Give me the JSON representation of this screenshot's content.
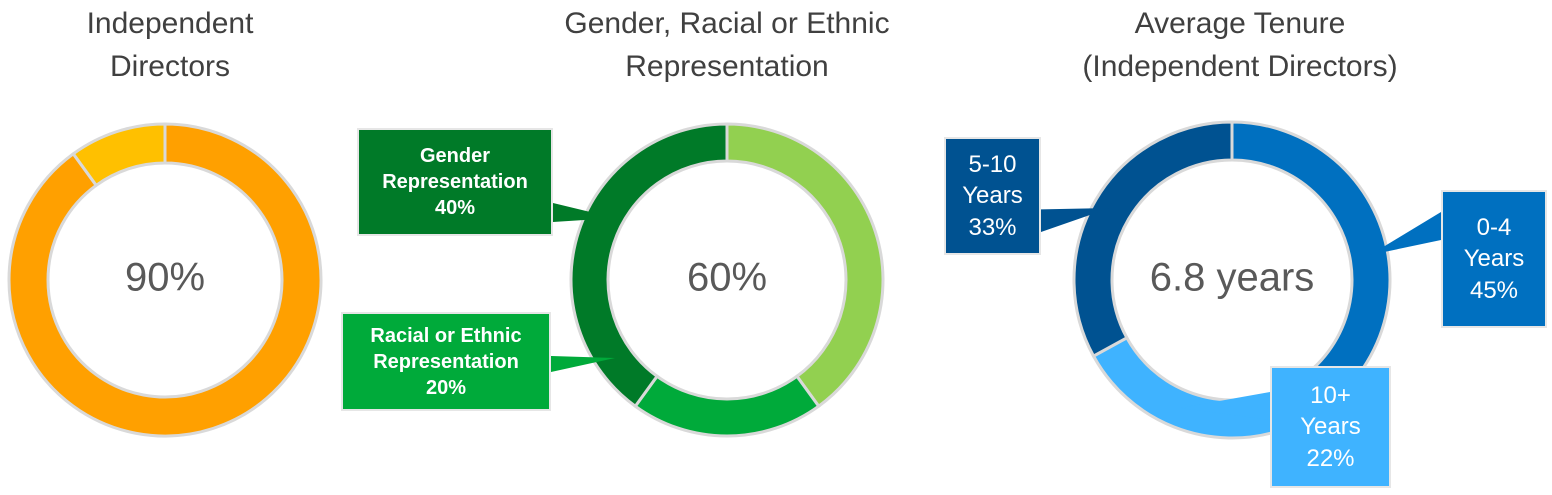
{
  "chart_data": [
    {
      "type": "donut",
      "title": "Independent Directors",
      "center_label": "90%",
      "values": [
        90,
        10
      ],
      "colors": [
        "#FFA000",
        "#FFC000"
      ]
    },
    {
      "type": "donut",
      "title": "Gender, Racial or Ethnic Representation",
      "center_label": "60%",
      "categories": [
        null,
        "Racial or Ethnic Representation",
        "Gender Representation"
      ],
      "values": [
        40,
        20,
        40
      ],
      "value_labels": [
        null,
        "20%",
        "40%"
      ],
      "colors": [
        "#92D050",
        "#00AA3A",
        "#007A28"
      ]
    },
    {
      "type": "donut",
      "title": "Average Tenure (Independent Directors)",
      "center_label": "6.8 years",
      "categories": [
        "0-4 Years",
        "10+ Years",
        "5-10 Years"
      ],
      "values": [
        45,
        22,
        33
      ],
      "value_labels": [
        "45%",
        "22%",
        "33%"
      ],
      "colors": [
        "#0070C0",
        "#3FB3FF",
        "#005291"
      ]
    }
  ]
}
